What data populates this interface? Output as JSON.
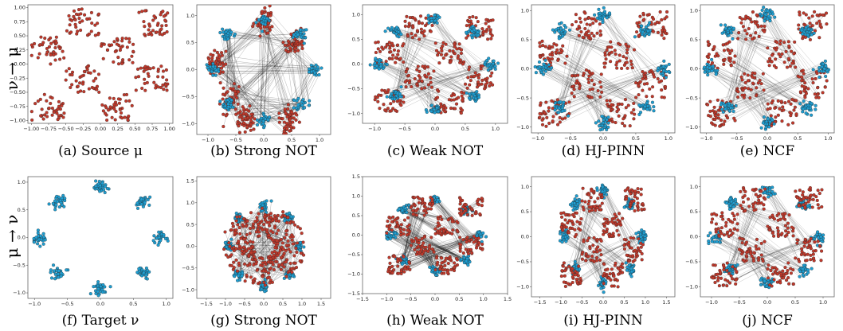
{
  "figure": {
    "row_labels": [
      "ν → μ",
      "μ → ν"
    ],
    "colors": {
      "source": "#c0392b",
      "target": "#1f9ed1",
      "link": "#1a1a1a"
    }
  },
  "chart_data": [
    {
      "type": "scatter",
      "panel": "a",
      "caption": "(a) Source μ",
      "xlim": [
        -1.05,
        1.05
      ],
      "ylim": [
        -1.05,
        1.05
      ],
      "xticks": [
        -1.0,
        -0.75,
        -0.5,
        -0.25,
        0.0,
        0.25,
        0.5,
        0.75,
        1.0
      ],
      "xticklabels": [
        "−1.00",
        "−0.75",
        "−0.50",
        "−0.25",
        "0.00",
        "0.25",
        "0.50",
        "0.75",
        "1.00"
      ],
      "yticks": [
        1.0,
        0.75,
        0.5,
        0.25,
        0.0,
        -0.25,
        -0.5,
        -0.75,
        -1.0
      ],
      "yticklabels": [
        "1.00",
        "0.75",
        "0.50",
        "0.25",
        "0.00",
        "−0.25",
        "−0.50",
        "−0.75",
        "−1.00"
      ],
      "series": [
        {
          "role": "source",
          "distribution": "checkerboard"
        }
      ],
      "links": "none",
      "frame": false
    },
    {
      "type": "scatter",
      "panel": "b",
      "caption": "(b) Strong NOT",
      "xlim": [
        -1.2,
        1.2
      ],
      "ylim": [
        -1.2,
        1.2
      ],
      "xticks": [
        -1.0,
        -0.5,
        0.0,
        0.5,
        1.0
      ],
      "xticklabels": [
        "−1.0",
        "−0.5",
        "0.0",
        "0.5",
        "1.0"
      ],
      "yticks": [
        1.0,
        0.5,
        0.0,
        -0.5,
        -1.0
      ],
      "yticklabels": [
        "1.0",
        "0.5",
        "0.0",
        "−0.5",
        "−1.0"
      ],
      "series": [
        {
          "role": "source",
          "distribution": "collapsed-clusters"
        },
        {
          "role": "target",
          "distribution": "eight-gaussians"
        }
      ],
      "links": "dense",
      "frame": true
    },
    {
      "type": "scatter",
      "panel": "c",
      "caption": "(c) Weak NOT",
      "xlim": [
        -1.2,
        1.2
      ],
      "ylim": [
        -1.2,
        1.2
      ],
      "xticks": [
        -1.0,
        -0.5,
        0.0,
        0.5,
        1.0
      ],
      "xticklabels": [
        "−1.0",
        "−0.5",
        "0.0",
        "0.5",
        "1.0"
      ],
      "yticks": [
        1.0,
        0.5,
        0.0,
        -0.5,
        -1.0
      ],
      "yticklabels": [
        "1.0",
        "0.5",
        "0.0",
        "−0.5",
        "−1.0"
      ],
      "series": [
        {
          "role": "source",
          "distribution": "checkerboard"
        },
        {
          "role": "target",
          "distribution": "eight-gaussians"
        }
      ],
      "links": "sparse",
      "frame": true
    },
    {
      "type": "scatter",
      "panel": "d",
      "caption": "(d) HJ-PINN",
      "xlim": [
        -1.1,
        1.1
      ],
      "ylim": [
        -1.1,
        1.1
      ],
      "xticks": [
        -1.0,
        -0.5,
        0.0,
        0.5,
        1.0
      ],
      "xticklabels": [
        "−1.0",
        "−0.5",
        "0.0",
        "0.5",
        "1.0"
      ],
      "yticks": [
        1.0,
        0.5,
        0.0,
        -0.5,
        -1.0
      ],
      "yticklabels": [
        "1.0",
        "0.5",
        "0.0",
        "−0.5",
        "−1.0"
      ],
      "series": [
        {
          "role": "source",
          "distribution": "checkerboard"
        },
        {
          "role": "target",
          "distribution": "eight-gaussians"
        }
      ],
      "links": "sparse",
      "frame": true
    },
    {
      "type": "scatter",
      "panel": "e",
      "caption": "(e) NCF",
      "xlim": [
        -1.1,
        1.1
      ],
      "ylim": [
        -1.1,
        1.1
      ],
      "xticks": [
        -1.0,
        -0.5,
        0.0,
        0.5,
        1.0
      ],
      "xticklabels": [
        "−1.0",
        "−0.5",
        "0.0",
        "0.5",
        "1.0"
      ],
      "yticks": [
        1.0,
        0.5,
        0.0,
        -0.5,
        -1.0
      ],
      "yticklabels": [
        "1.0",
        "0.5",
        "0.0",
        "−0.5",
        "−1.0"
      ],
      "series": [
        {
          "role": "source",
          "distribution": "checkerboard"
        },
        {
          "role": "target",
          "distribution": "eight-gaussians"
        }
      ],
      "links": "sparse",
      "frame": true
    },
    {
      "type": "scatter",
      "panel": "f",
      "caption": "(f) Target ν",
      "xlim": [
        -1.1,
        1.1
      ],
      "ylim": [
        -1.1,
        1.1
      ],
      "xticks": [
        -1.0,
        -0.5,
        0.0,
        0.5,
        1.0
      ],
      "xticklabels": [
        "−1.0",
        "−0.5",
        "0.0",
        "0.5",
        "1.0"
      ],
      "yticks": [
        1.0,
        0.5,
        0.0,
        -0.5,
        -1.0
      ],
      "yticklabels": [
        "1.0",
        "0.5",
        "0.0",
        "−0.5",
        "−1.0"
      ],
      "series": [
        {
          "role": "target",
          "distribution": "eight-gaussians"
        }
      ],
      "links": "none",
      "frame": false
    },
    {
      "type": "scatter",
      "panel": "g",
      "caption": "(g) Strong NOT",
      "xlim": [
        -1.75,
        1.75
      ],
      "ylim": [
        -1.2,
        1.6
      ],
      "xticks": [
        -1.5,
        -1.0,
        -0.5,
        0.0,
        0.5,
        1.0,
        1.5
      ],
      "xticklabels": [
        "−1.5",
        "−1.0",
        "−0.5",
        "0.0",
        "0.5",
        "1.0",
        "1.5"
      ],
      "yticks": [
        1.5,
        1.0,
        0.5,
        0.0,
        -0.5,
        -1.0
      ],
      "yticklabels": [
        "1.5",
        "1.0",
        "0.5",
        "0.0",
        "−0.5",
        "−1.0"
      ],
      "series": [
        {
          "role": "target",
          "distribution": "eight-gaussians"
        },
        {
          "role": "source",
          "distribution": "mapped-blobs"
        }
      ],
      "links": "dense",
      "frame": true
    },
    {
      "type": "scatter",
      "panel": "h",
      "caption": "(h) Weak NOT",
      "xlim": [
        -1.5,
        1.5
      ],
      "ylim": [
        -1.5,
        1.5
      ],
      "xticks": [
        -1.5,
        -1.0,
        -0.5,
        0.0,
        0.5,
        1.0,
        1.5
      ],
      "xticklabels": [
        "−1.5",
        "−1.0",
        "−0.5",
        "0.0",
        "0.5",
        "1.0",
        "1.5"
      ],
      "yticks": [
        1.5,
        1.0,
        0.5,
        0.0,
        -0.5,
        -1.0,
        -1.5
      ],
      "yticklabels": [
        "1.5",
        "1.0",
        "0.5",
        "0.0",
        "−0.5",
        "−1.0",
        "−1.5"
      ],
      "series": [
        {
          "role": "target",
          "distribution": "eight-gaussians"
        },
        {
          "role": "source",
          "distribution": "checkerboard"
        }
      ],
      "links": "dense",
      "frame": true
    },
    {
      "type": "scatter",
      "panel": "i",
      "caption": "(i) HJ-PINN",
      "xlim": [
        -1.7,
        1.7
      ],
      "ylim": [
        -1.2,
        1.2
      ],
      "xticks": [
        -1.5,
        -1.0,
        -0.5,
        0.0,
        0.5,
        1.0,
        1.5
      ],
      "xticklabels": [
        "−1.5",
        "−1.0",
        "−0.5",
        "0.0",
        "0.5",
        "1.0",
        "1.5"
      ],
      "yticks": [
        1.0,
        0.5,
        0.0,
        -0.5,
        -1.0
      ],
      "yticklabels": [
        "1.0",
        "0.5",
        "0.0",
        "−0.5",
        "−1.0"
      ],
      "series": [
        {
          "role": "target",
          "distribution": "eight-gaussians"
        },
        {
          "role": "source",
          "distribution": "checkerboard"
        }
      ],
      "links": "sparse",
      "frame": false
    },
    {
      "type": "scatter",
      "panel": "j",
      "caption": "(j) NCF",
      "xlim": [
        -1.2,
        1.2
      ],
      "ylim": [
        -1.2,
        1.2
      ],
      "xticks": [
        -1.0,
        -0.5,
        0.0,
        0.5,
        1.0
      ],
      "xticklabels": [
        "−1.0",
        "−0.5",
        "0.0",
        "0.5",
        "1.0"
      ],
      "yticks": [
        1.0,
        0.5,
        0.0,
        -0.5,
        -1.0
      ],
      "yticklabels": [
        "1.0",
        "0.5",
        "0.0",
        "−0.5",
        "−1.0"
      ],
      "series": [
        {
          "role": "target",
          "distribution": "eight-gaussians"
        },
        {
          "role": "source",
          "distribution": "checkerboard"
        }
      ],
      "links": "sparse",
      "frame": true
    }
  ]
}
